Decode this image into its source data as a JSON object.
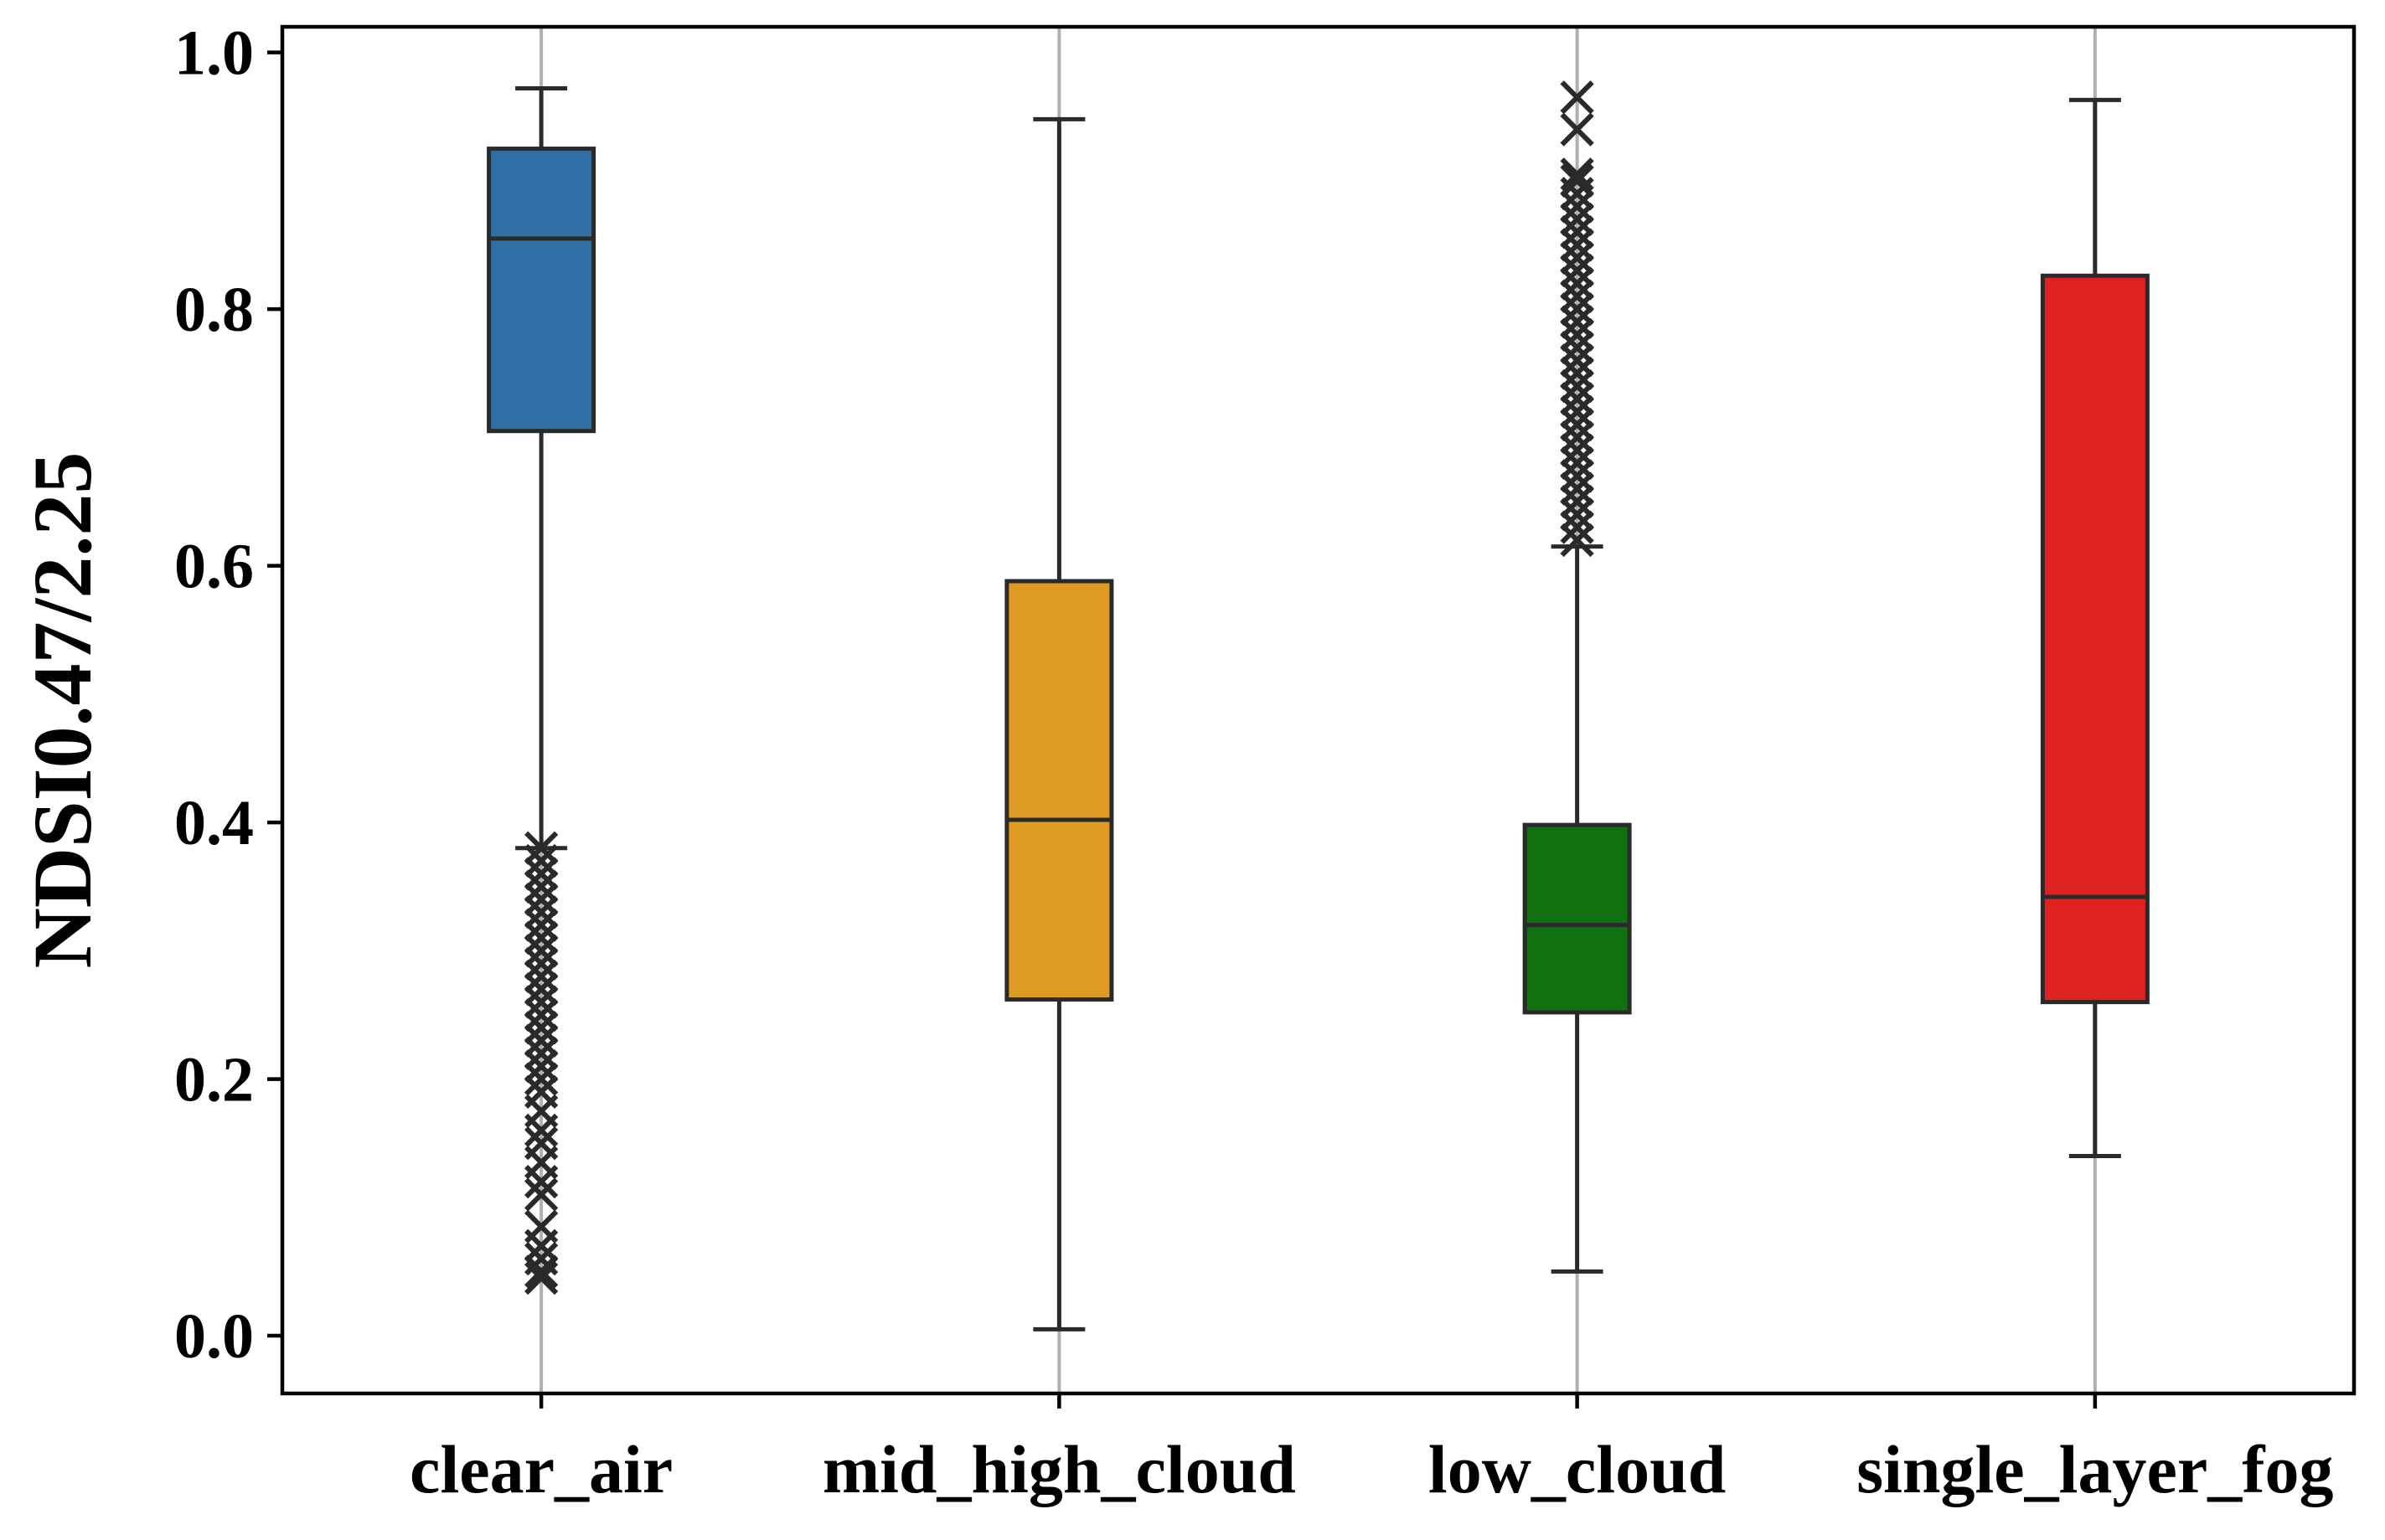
{
  "chart_data": {
    "type": "box",
    "ylabel": "NDSI0.47/2.25",
    "xlabel": "",
    "ylim": [
      -0.045,
      1.02
    ],
    "yticks": [
      0.0,
      0.2,
      0.4,
      0.6,
      0.8,
      1.0
    ],
    "ytick_labels": [
      "0.0",
      "0.2",
      "0.4",
      "0.6",
      "0.8",
      "1.0"
    ],
    "grid": "vertical lines at categories",
    "categories": [
      "clear_air",
      "mid_high_cloud",
      "low_cloud",
      "single_layer_fog"
    ],
    "boxes": [
      {
        "category": "clear_air",
        "color": "#2f6fa4",
        "whisker_low": 0.38,
        "q1": 0.705,
        "median": 0.855,
        "q3": 0.925,
        "whisker_high": 0.972,
        "outliers": [
          0.045,
          0.05,
          0.06,
          0.07,
          0.085,
          0.11,
          0.12,
          0.135,
          0.15,
          0.16,
          0.175,
          0.19,
          0.2,
          0.21,
          0.22,
          0.23,
          0.24,
          0.25,
          0.26,
          0.27,
          0.28,
          0.29,
          0.3,
          0.31,
          0.32,
          0.33,
          0.34,
          0.35,
          0.36,
          0.37,
          0.38
        ]
      },
      {
        "category": "mid_high_cloud",
        "color": "#de9b22",
        "whisker_low": 0.005,
        "q1": 0.262,
        "median": 0.402,
        "q3": 0.588,
        "whisker_high": 0.948,
        "outliers": []
      },
      {
        "category": "low_cloud",
        "color": "#11700f",
        "whisker_low": 0.05,
        "q1": 0.252,
        "median": 0.32,
        "q3": 0.398,
        "whisker_high": 0.615,
        "outliers": [
          0.62,
          0.63,
          0.64,
          0.65,
          0.66,
          0.67,
          0.68,
          0.69,
          0.7,
          0.71,
          0.72,
          0.73,
          0.74,
          0.75,
          0.76,
          0.77,
          0.78,
          0.79,
          0.8,
          0.81,
          0.82,
          0.83,
          0.84,
          0.85,
          0.86,
          0.87,
          0.88,
          0.89,
          0.9,
          0.905,
          0.94,
          0.965
        ]
      },
      {
        "category": "single_layer_fog",
        "color": "#de2121",
        "whisker_low": 0.14,
        "q1": 0.26,
        "median": 0.342,
        "q3": 0.826,
        "whisker_high": 0.963,
        "outliers": []
      }
    ]
  }
}
